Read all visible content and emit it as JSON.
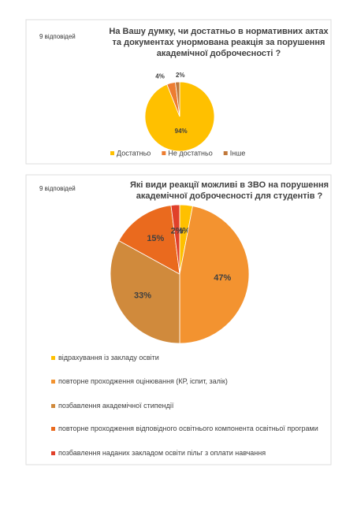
{
  "chart_data": [
    {
      "type": "pie",
      "subtitle": "9 відповідей",
      "title": "На Вашу думку, чи достатньо в нормативних актах та документах унормована реакція за порушення академічної доброчесності ?",
      "categories": [
        "Достатньо",
        "Не достатньо",
        "Інше"
      ],
      "values": [
        94,
        4,
        2
      ],
      "value_labels": [
        "94%",
        "4%",
        "2%"
      ],
      "colors": [
        "#ffc000",
        "#ed7d31",
        "#c0783a"
      ],
      "legend": "bottom"
    },
    {
      "type": "pie",
      "subtitle": "9 відповідей",
      "title": "Які види реакції можливі в ЗВО на порушення академічної доброчесності для студентів ?",
      "categories": [
        "відрахування із закладу освіти",
        "повторне проходження оцінювання (КР, іспит, залік)",
        "позбавлення академічної стипендії",
        "повторне проходження відповідного освітнього компонента освітньої програми",
        "позбавлення наданих закладом освіти пільг з оплати навчання"
      ],
      "values": [
        3,
        47,
        33,
        15,
        2
      ],
      "value_labels": [
        "3%",
        "47%",
        "33%",
        "15%",
        "2%"
      ],
      "colors": [
        "#ffc000",
        "#f39330",
        "#d08a3c",
        "#ea6a1e",
        "#e0402a"
      ],
      "legend": "left"
    }
  ]
}
